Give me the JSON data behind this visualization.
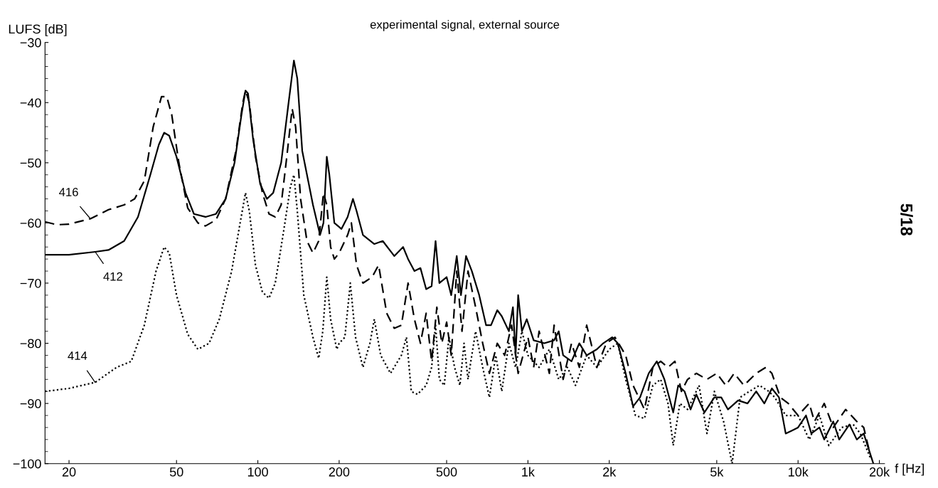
{
  "chart_data": {
    "type": "line",
    "title": "experimental signal, external source",
    "xlabel": "f [Hz]",
    "ylabel": "LUFS [dB]",
    "log": "x",
    "grid": false,
    "annotations": [
      "5/18"
    ],
    "xlim": [
      16.3,
      20900
    ],
    "ylim": [
      -100,
      -30
    ],
    "xticks": [
      20,
      50,
      100,
      200,
      500,
      {
        "value": 1000,
        "label": "1k"
      },
      {
        "value": 2000,
        "label": "2k"
      },
      {
        "value": 5000,
        "label": "5k"
      },
      {
        "value": 10000,
        "label": "10k"
      },
      {
        "value": 20000,
        "label": "20k"
      }
    ],
    "yticks": [
      {
        "value": -100,
        "label": "−100"
      },
      {
        "value": -90,
        "label": "−90"
      },
      {
        "value": -80,
        "label": "−80"
      },
      {
        "value": -70,
        "label": "−70"
      },
      {
        "value": -60,
        "label": "−60"
      },
      {
        "value": -50,
        "label": "−50"
      },
      {
        "value": -40,
        "label": "−40"
      },
      {
        "value": -30,
        "label": "−30"
      }
    ],
    "series": [
      {
        "name": "416",
        "color": "#000000",
        "line_style": "dashed",
        "x": [
          16.3,
          18,
          20,
          24,
          28,
          32,
          35,
          38,
          41,
          44,
          46,
          48,
          51,
          55,
          60,
          64,
          70,
          76,
          83,
          88,
          90,
          93,
          98,
          104,
          110,
          116,
          122,
          128,
          134,
          138,
          144,
          152,
          160,
          168,
          175,
          180,
          186,
          192,
          200,
          215,
          222,
          232,
          245,
          265,
          280,
          300,
          320,
          340,
          360,
          380,
          400,
          420,
          440,
          460,
          480,
          500,
          520,
          545,
          570,
          600,
          640,
          680,
          720,
          770,
          820,
          870,
          920,
          1000,
          1050,
          1100,
          1200,
          1250,
          1350,
          1450,
          1550,
          1650,
          1800,
          1950,
          2100,
          2300,
          2450,
          2700,
          2900,
          3100,
          3300,
          3500,
          3700,
          3900,
          4200,
          4600,
          5000,
          5400,
          5800,
          6300,
          7000,
          7600,
          8000,
          8600,
          9200,
          10000,
          11000,
          11500,
          12500,
          13500,
          15000,
          16500,
          17500,
          18500
        ],
        "values": [
          -59.8,
          -60.3,
          -60.2,
          -59.3,
          -57.8,
          -57,
          -56,
          -53,
          -44,
          -39,
          -39,
          -42,
          -50,
          -57.5,
          -60,
          -60.5,
          -59.5,
          -56,
          -48,
          -40,
          -38,
          -40,
          -49,
          -55,
          -58.5,
          -59,
          -57,
          -49,
          -41,
          -44,
          -56,
          -63,
          -65,
          -63,
          -55,
          -57,
          -64,
          -66,
          -65,
          -62,
          -60,
          -67,
          -70,
          -69,
          -67,
          -75,
          -77.5,
          -77,
          -70,
          -76,
          -80,
          -75,
          -83,
          -74,
          -80,
          -76.5,
          -82,
          -68,
          -78,
          -68,
          -74,
          -80,
          -85,
          -80,
          -82,
          -77,
          -85,
          -79,
          -84,
          -78,
          -85,
          -77,
          -86,
          -80,
          -84,
          -77,
          -84,
          -80,
          -79,
          -82,
          -87,
          -91,
          -84,
          -83,
          -84,
          -83,
          -88,
          -86,
          -85,
          -86,
          -85,
          -87,
          -85,
          -87,
          -85,
          -84,
          -85,
          -89,
          -90,
          -92,
          -90,
          -93,
          -90,
          -94,
          -91,
          -93,
          -94,
          -98.5
        ]
      },
      {
        "name": "412",
        "color": "#000000",
        "line_style": "solid",
        "x": [
          16.3,
          20,
          25,
          28,
          32,
          36,
          40,
          43,
          45,
          47,
          50,
          54,
          58,
          64,
          70,
          76,
          82,
          87,
          90,
          92,
          96,
          102,
          108,
          114,
          122,
          130,
          136,
          140,
          146,
          160,
          170,
          175,
          180,
          184,
          192,
          198,
          204,
          215,
          225,
          232,
          245,
          270,
          290,
          320,
          345,
          360,
          380,
          400,
          420,
          440,
          455,
          470,
          500,
          520,
          545,
          565,
          590,
          620,
          660,
          700,
          730,
          770,
          800,
          850,
          880,
          900,
          920,
          950,
          990,
          1050,
          1150,
          1250,
          1300,
          1350,
          1450,
          1550,
          1650,
          1800,
          1900,
          2050,
          2150,
          2300,
          2450,
          2600,
          2800,
          3000,
          3200,
          3450,
          3600,
          3800,
          4000,
          4200,
          4500,
          4900,
          5200,
          5500,
          6000,
          6500,
          7000,
          7500,
          8000,
          8500,
          9000,
          9500,
          10000,
          10700,
          11200,
          12000,
          12500,
          13500,
          14200,
          15500,
          16500,
          17500,
          19000
        ],
        "values": [
          -65.3,
          -65.3,
          -64.8,
          -64.5,
          -63,
          -59,
          -52,
          -47,
          -45,
          -45.5,
          -49,
          -55,
          -58.5,
          -59,
          -58.5,
          -56,
          -50,
          -42,
          -38,
          -38.5,
          -46,
          -53.5,
          -56,
          -55,
          -50,
          -40,
          -33,
          -36,
          -48,
          -57,
          -62,
          -60,
          -49,
          -52,
          -60,
          -60.5,
          -61,
          -59,
          -56,
          -58,
          -62,
          -63.5,
          -63,
          -65.5,
          -64,
          -66,
          -68,
          -67.5,
          -71,
          -70.5,
          -63,
          -70,
          -69,
          -72,
          -65.5,
          -72,
          -65.5,
          -68,
          -72,
          -77,
          -77,
          -74.5,
          -75.5,
          -78,
          -74,
          -82,
          -72,
          -78,
          -76,
          -79.5,
          -80,
          -79.5,
          -78,
          -82,
          -83,
          -80,
          -82,
          -81,
          -80,
          -79,
          -80,
          -85,
          -90.5,
          -89,
          -85,
          -83,
          -86,
          -91.5,
          -87,
          -88,
          -91,
          -88.5,
          -91.5,
          -89,
          -89,
          -91,
          -89.5,
          -90,
          -88,
          -90,
          -87.5,
          -89,
          -95,
          -94.5,
          -94,
          -92,
          -95,
          -94,
          -96,
          -93,
          -96,
          -93.5,
          -96,
          -95,
          -100
        ]
      },
      {
        "name": "414",
        "color": "#000000",
        "line_style": "dotted",
        "x": [
          16.3,
          20,
          25,
          30,
          34,
          38,
          42,
          45,
          47,
          50,
          55,
          60,
          66,
          72,
          80,
          86,
          90,
          93,
          98,
          104,
          110,
          116,
          124,
          132,
          136,
          140,
          148,
          160,
          168,
          174,
          180,
          186,
          196,
          200,
          210,
          220,
          230,
          245,
          260,
          270,
          285,
          310,
          340,
          355,
          370,
          390,
          420,
          440,
          455,
          470,
          490,
          510,
          535,
          560,
          580,
          600,
          640,
          680,
          720,
          760,
          800,
          850,
          900,
          950,
          1000,
          1100,
          1200,
          1300,
          1400,
          1500,
          1650,
          1800,
          2000,
          2150,
          2300,
          2500,
          2700,
          2900,
          3100,
          3300,
          3450,
          3650,
          3900,
          4300,
          4600,
          4900,
          5300,
          5700,
          6100,
          6600,
          7200,
          7800,
          8200,
          9000,
          10000,
          11000,
          12000,
          13000,
          14500,
          16000,
          17000,
          18500
        ],
        "values": [
          -88,
          -87.5,
          -86.5,
          -84,
          -83,
          -77,
          -68,
          -64,
          -65,
          -72,
          -78.5,
          -81,
          -80,
          -76,
          -68,
          -60,
          -55,
          -58,
          -67,
          -71.5,
          -72.5,
          -70,
          -62,
          -54,
          -52,
          -58,
          -72,
          -79,
          -82.5,
          -78,
          -69,
          -76,
          -81,
          -80,
          -79,
          -70,
          -79,
          -84,
          -80,
          -76,
          -82,
          -85,
          -82,
          -79,
          -88,
          -88.5,
          -87,
          -84,
          -77,
          -86,
          -87,
          -79,
          -84,
          -87,
          -80,
          -86,
          -78,
          -84,
          -89,
          -82,
          -88,
          -80,
          -84,
          -78,
          -82,
          -84,
          -81,
          -86,
          -84,
          -87,
          -82,
          -84,
          -81,
          -80,
          -86,
          -92,
          -92.5,
          -87,
          -86,
          -90,
          -97,
          -90,
          -91,
          -87,
          -95,
          -88,
          -93,
          -100,
          -89,
          -88,
          -87,
          -88,
          -89,
          -92,
          -92,
          -96,
          -92,
          -97,
          -94,
          -93.5,
          -95,
          -99
        ]
      }
    ]
  }
}
